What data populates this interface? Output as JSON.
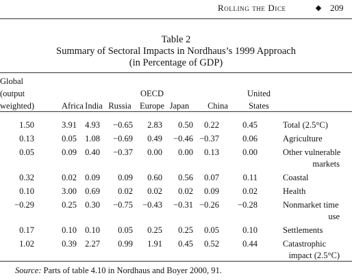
{
  "header": {
    "running_title": "Rolling the Dice",
    "page_number": "209"
  },
  "table": {
    "label": "Table 2",
    "title": "Summary of Sectoral Impacts in Nordhaus’s 1999 Approach",
    "subtitle": "(in Percentage of GDP)",
    "columns": [
      [
        "Global",
        "(output",
        "weighted)"
      ],
      [
        "Africa"
      ],
      [
        "India"
      ],
      [
        "Russia"
      ],
      [
        "OECD",
        "Europe"
      ],
      [
        "Japan"
      ],
      [
        "China"
      ],
      [
        "United",
        "States"
      ]
    ],
    "rows": [
      {
        "values": [
          "1.50",
          "3.91",
          "4.93",
          "−0.65",
          "2.83",
          "0.50",
          "0.22",
          "0.45"
        ],
        "label": [
          "Total (2.5°C)"
        ]
      },
      {
        "values": [
          "0.13",
          "0.05",
          "1.08",
          "−0.69",
          "0.49",
          "−0.46",
          "−0.37",
          "0.06"
        ],
        "label": [
          "Agriculture"
        ]
      },
      {
        "values": [
          "0.05",
          "0.09",
          "0.40",
          "−0.37",
          "0.00",
          "0.00",
          "0.13",
          "0.00"
        ],
        "label": [
          "Other vulnerable",
          "markets"
        ]
      },
      {
        "values": [
          "0.32",
          "0.02",
          "0.09",
          "0.09",
          "0.60",
          "0.56",
          "0.07",
          "0.11"
        ],
        "label": [
          "Coastal"
        ]
      },
      {
        "values": [
          "0.10",
          "3.00",
          "0.69",
          "0.02",
          "0.02",
          "0.02",
          "0.09",
          "0.02"
        ],
        "label": [
          "Health"
        ]
      },
      {
        "values": [
          "−0.29",
          "0.25",
          "0.30",
          "−0.75",
          "−0.43",
          "−0.31",
          "−0.26",
          "−0.28"
        ],
        "label": [
          "Nonmarket time",
          "use"
        ]
      },
      {
        "values": [
          "0.17",
          "0.10",
          "0.10",
          "0.05",
          "0.25",
          "0.25",
          "0.05",
          "0.10"
        ],
        "label": [
          "Settlements"
        ]
      },
      {
        "values": [
          "1.02",
          "0.39",
          "2.27",
          "0.99",
          "1.91",
          "0.45",
          "0.52",
          "0.44"
        ],
        "label": [
          "Catastrophic",
          "impact (2.5°C)"
        ]
      }
    ]
  },
  "source": {
    "prefix": "Source:",
    "text": "Parts of table 4.10 in Nordhaus and Boyer 2000, 91."
  }
}
